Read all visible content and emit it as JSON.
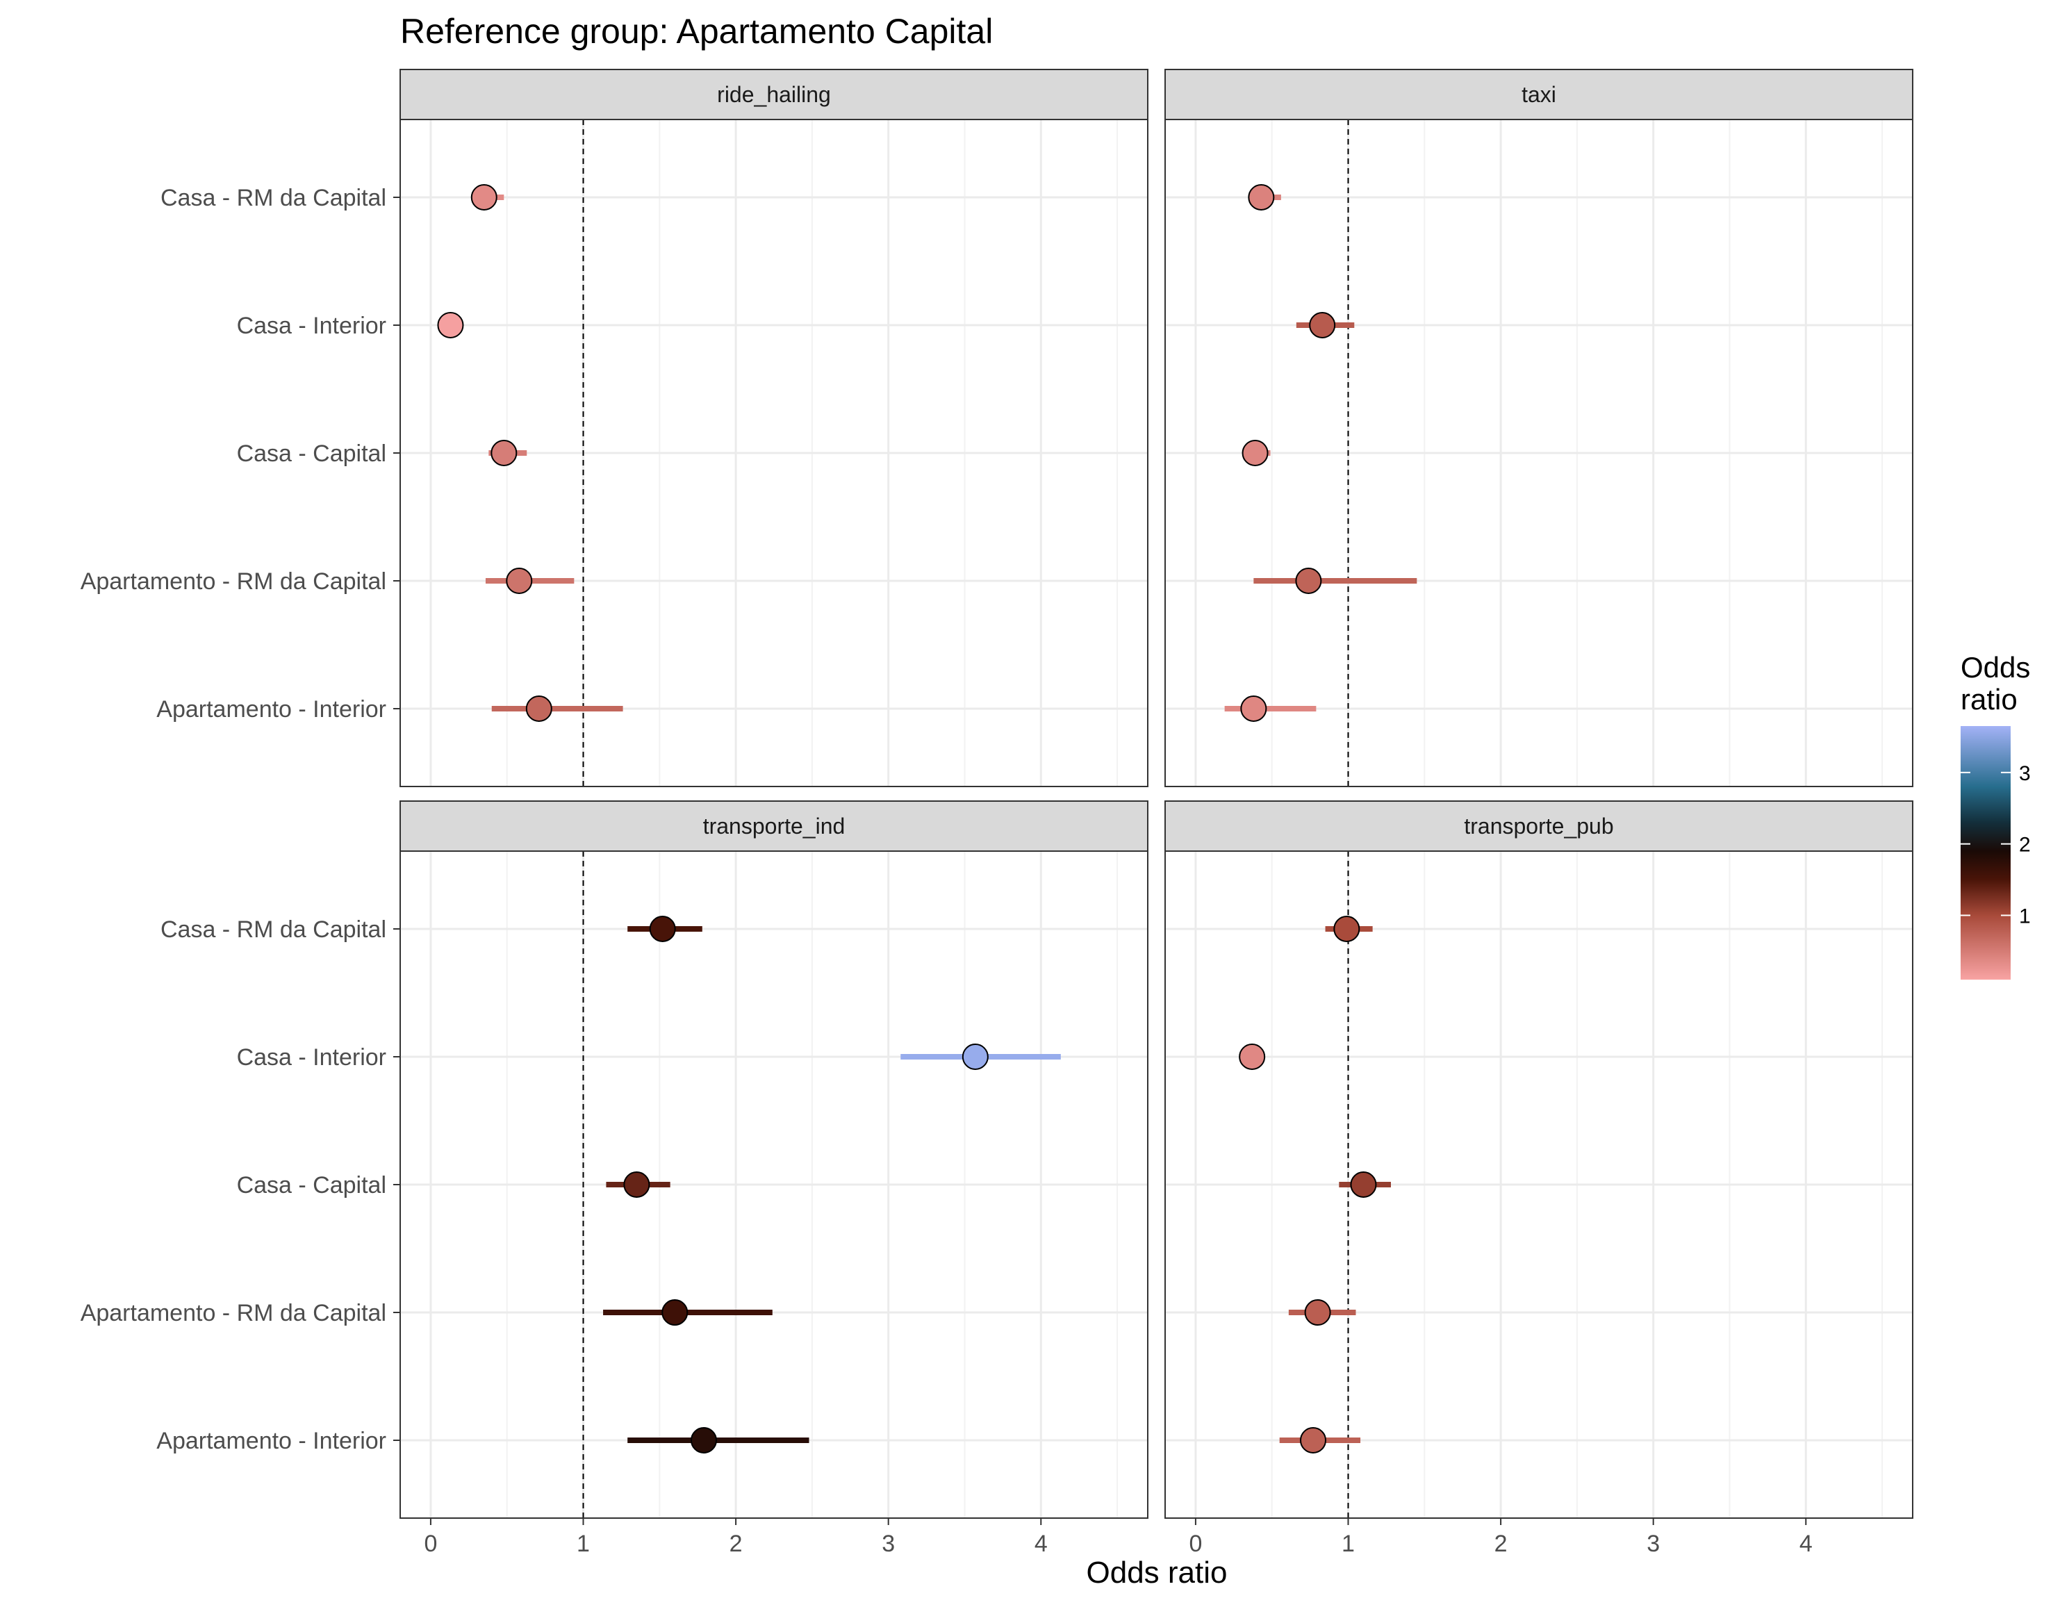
{
  "chart_data": {
    "type": "scatter",
    "subtype": "forest-plot-faceted",
    "title": "Reference group: Apartamento Capital",
    "xlabel": "Odds ratio",
    "ylabel": "",
    "xlim": [
      -0.2,
      4.7
    ],
    "x_ticks": [
      0,
      1,
      2,
      3,
      4
    ],
    "reference_line": 1,
    "reference_line_style": "dashed",
    "grid": true,
    "categories": [
      "Casa - RM da Capital",
      "Casa - Interior",
      "Casa - Capital",
      "Apartamento - RM da Capital",
      "Apartamento - Interior"
    ],
    "legend": {
      "title": "Odds\nratio",
      "position": "right",
      "ticks": [
        1,
        2,
        3
      ],
      "range": [
        0.1,
        3.65
      ],
      "gradient_stops": [
        {
          "value": 0.1,
          "color": "#f8a3a3"
        },
        {
          "value": 1.0,
          "color": "#a84a3a"
        },
        {
          "value": 1.5,
          "color": "#4a1408"
        },
        {
          "value": 1.9,
          "color": "#1a0a06"
        },
        {
          "value": 2.3,
          "color": "#132f3b"
        },
        {
          "value": 2.8,
          "color": "#276d8d"
        },
        {
          "value": 3.65,
          "color": "#a3b2f6"
        }
      ]
    },
    "panels": [
      {
        "name": "ride_hailing",
        "points": [
          {
            "category": "Casa - RM da Capital",
            "or": 0.35,
            "low": 0.27,
            "high": 0.48
          },
          {
            "category": "Casa - Interior",
            "or": 0.13,
            "low": 0.12,
            "high": 0.14
          },
          {
            "category": "Casa - Capital",
            "or": 0.48,
            "low": 0.38,
            "high": 0.63
          },
          {
            "category": "Apartamento - RM da Capital",
            "or": 0.58,
            "low": 0.36,
            "high": 0.94
          },
          {
            "category": "Apartamento - Interior",
            "or": 0.71,
            "low": 0.4,
            "high": 1.26
          }
        ]
      },
      {
        "name": "taxi",
        "points": [
          {
            "category": "Casa - RM da Capital",
            "or": 0.43,
            "low": 0.36,
            "high": 0.56
          },
          {
            "category": "Casa - Interior",
            "or": 0.83,
            "low": 0.66,
            "high": 1.04
          },
          {
            "category": "Casa - Capital",
            "or": 0.39,
            "low": 0.34,
            "high": 0.49
          },
          {
            "category": "Apartamento - RM da Capital",
            "or": 0.74,
            "low": 0.38,
            "high": 1.45
          },
          {
            "category": "Apartamento - Interior",
            "or": 0.38,
            "low": 0.19,
            "high": 0.79
          }
        ]
      },
      {
        "name": "transporte_ind",
        "points": [
          {
            "category": "Casa - RM da Capital",
            "or": 1.52,
            "low": 1.29,
            "high": 1.78
          },
          {
            "category": "Casa - Interior",
            "or": 3.57,
            "low": 3.08,
            "high": 4.13
          },
          {
            "category": "Casa - Capital",
            "or": 1.35,
            "low": 1.15,
            "high": 1.57
          },
          {
            "category": "Apartamento - RM da Capital",
            "or": 1.6,
            "low": 1.13,
            "high": 2.24
          },
          {
            "category": "Apartamento - Interior",
            "or": 1.79,
            "low": 1.29,
            "high": 2.48
          }
        ]
      },
      {
        "name": "transporte_pub",
        "points": [
          {
            "category": "Casa - RM da Capital",
            "or": 0.99,
            "low": 0.85,
            "high": 1.16
          },
          {
            "category": "Casa - Interior",
            "or": 0.37,
            "low": 0.34,
            "high": 0.4
          },
          {
            "category": "Casa - Capital",
            "or": 1.1,
            "low": 0.94,
            "high": 1.28
          },
          {
            "category": "Apartamento - RM da Capital",
            "or": 0.8,
            "low": 0.61,
            "high": 1.05
          },
          {
            "category": "Apartamento - Interior",
            "or": 0.77,
            "low": 0.55,
            "high": 1.08
          }
        ]
      }
    ]
  }
}
